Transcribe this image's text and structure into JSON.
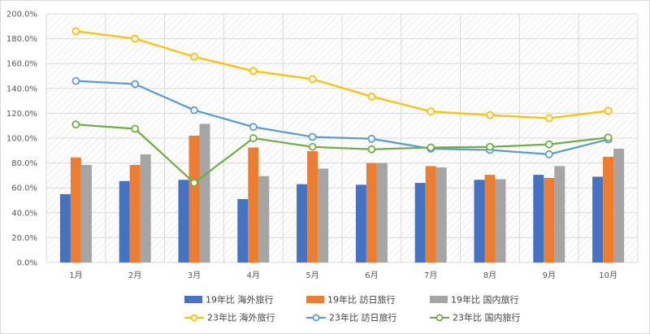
{
  "chart_data": {
    "type": "bar",
    "categories": [
      "1月",
      "2月",
      "3月",
      "4月",
      "5月",
      "6月",
      "7月",
      "8月",
      "9月",
      "10月"
    ],
    "ylim": [
      0,
      200
    ],
    "yticks": [
      "0.0%",
      "20.0%",
      "40.0%",
      "60.0%",
      "80.0%",
      "100.0%",
      "120.0%",
      "140.0%",
      "160.0%",
      "180.0%",
      "200.0%"
    ],
    "grid": true,
    "legend_position": "bottom",
    "bar_series": [
      {
        "name": "19年比 海外旅行",
        "color": "#4472C4",
        "values": [
          55,
          65.5,
          66.5,
          51,
          63,
          62.5,
          64,
          66.5,
          70.5,
          69
        ]
      },
      {
        "name": "19年比 訪日旅行",
        "color": "#ED7D31",
        "values": [
          84.5,
          78.5,
          102,
          92.5,
          89.5,
          80,
          77.5,
          70.5,
          68,
          85
        ]
      },
      {
        "name": "19年比 国内旅行",
        "color": "#A5A5A5",
        "values": [
          78.5,
          87,
          111.5,
          69.5,
          75.5,
          80,
          76.5,
          67,
          77.5,
          91.5
        ]
      }
    ],
    "line_series": [
      {
        "name": "23年比 海外旅行",
        "color": "#FFC000",
        "values": [
          186,
          180,
          165.5,
          154,
          147.5,
          133.5,
          121.5,
          118.5,
          116,
          122
        ]
      },
      {
        "name": "23年比 訪日旅行",
        "color": "#5B9BD5",
        "values": [
          146,
          143.5,
          122.5,
          109,
          101,
          99.5,
          91.5,
          90.5,
          87,
          99
        ]
      },
      {
        "name": "23年比 国内旅行",
        "color": "#70AD47",
        "values": [
          111,
          107.5,
          64,
          100,
          93,
          91,
          92.5,
          93,
          95,
          100.5
        ]
      }
    ]
  }
}
